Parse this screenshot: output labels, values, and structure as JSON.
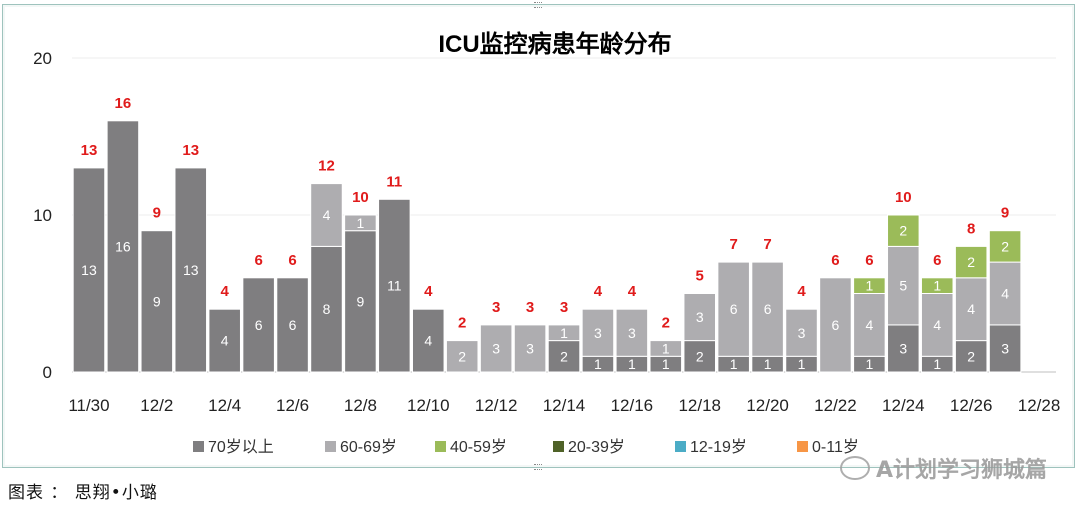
{
  "chart_data": {
    "type": "bar",
    "stacked": true,
    "title": "ICU监控病患年龄分布",
    "ylim": [
      0,
      20
    ],
    "y_ticks": [
      "0",
      "10",
      "20"
    ],
    "grid": "horizontal",
    "legend_position": "bottom",
    "categories": [
      "11/30",
      "12/1",
      "12/2",
      "12/3",
      "12/4",
      "12/5",
      "12/6",
      "12/7",
      "12/8",
      "12/9",
      "12/10",
      "12/11",
      "12/12",
      "12/13",
      "12/14",
      "12/15",
      "12/16",
      "12/17",
      "12/18",
      "12/19",
      "12/20",
      "12/21",
      "12/22",
      "12/23",
      "12/24",
      "12/25",
      "12/26",
      "12/27",
      "12/28"
    ],
    "x_tick_labels": [
      "11/30",
      "12/2",
      "12/4",
      "12/6",
      "12/8",
      "12/10",
      "12/12",
      "12/14",
      "12/16",
      "12/18",
      "12/20",
      "12/22",
      "12/24",
      "12/26",
      "12/28"
    ],
    "totals": [
      13,
      16,
      9,
      13,
      4,
      6,
      6,
      12,
      10,
      11,
      4,
      2,
      3,
      3,
      3,
      4,
      4,
      2,
      5,
      7,
      7,
      4,
      6,
      6,
      10,
      6,
      8,
      9,
      null
    ],
    "series": [
      {
        "name": "70岁以上",
        "color": "#7f7e80",
        "values": [
          13,
          16,
          9,
          13,
          4,
          6,
          6,
          8,
          9,
          11,
          4,
          0,
          0,
          0,
          2,
          1,
          1,
          1,
          2,
          1,
          1,
          1,
          0,
          1,
          3,
          1,
          2,
          3,
          0
        ]
      },
      {
        "name": "60-69岁",
        "color": "#aeadb0",
        "values": [
          0,
          0,
          0,
          0,
          0,
          0,
          0,
          4,
          1,
          0,
          0,
          2,
          3,
          3,
          1,
          3,
          3,
          1,
          3,
          6,
          6,
          3,
          6,
          4,
          5,
          4,
          4,
          4,
          0
        ]
      },
      {
        "name": "40-59岁",
        "color": "#9bbb59",
        "values": [
          0,
          0,
          0,
          0,
          0,
          0,
          0,
          0,
          0,
          0,
          0,
          0,
          0,
          0,
          0,
          0,
          0,
          0,
          0,
          0,
          0,
          0,
          0,
          1,
          2,
          1,
          2,
          2,
          0
        ]
      },
      {
        "name": "20-39岁",
        "color": "#4f6228",
        "values": [
          0,
          0,
          0,
          0,
          0,
          0,
          0,
          0,
          0,
          0,
          0,
          0,
          0,
          0,
          0,
          0,
          0,
          0,
          0,
          0,
          0,
          0,
          0,
          0,
          0,
          0,
          0,
          0,
          0
        ]
      },
      {
        "name": "12-19岁",
        "color": "#4bacc6",
        "values": [
          0,
          0,
          0,
          0,
          0,
          0,
          0,
          0,
          0,
          0,
          0,
          0,
          0,
          0,
          0,
          0,
          0,
          0,
          0,
          0,
          0,
          0,
          0,
          0,
          0,
          0,
          0,
          0,
          0
        ]
      },
      {
        "name": "0-11岁",
        "color": "#f79646",
        "values": [
          0,
          0,
          0,
          0,
          0,
          0,
          0,
          0,
          0,
          0,
          0,
          0,
          0,
          0,
          0,
          0,
          0,
          0,
          0,
          0,
          0,
          0,
          0,
          0,
          0,
          0,
          0,
          0,
          0
        ]
      }
    ],
    "total_label_color": "#e01b1b"
  },
  "caption": "图表 ： 思翔•小璐",
  "watermark": "A计划学习狮城篇"
}
